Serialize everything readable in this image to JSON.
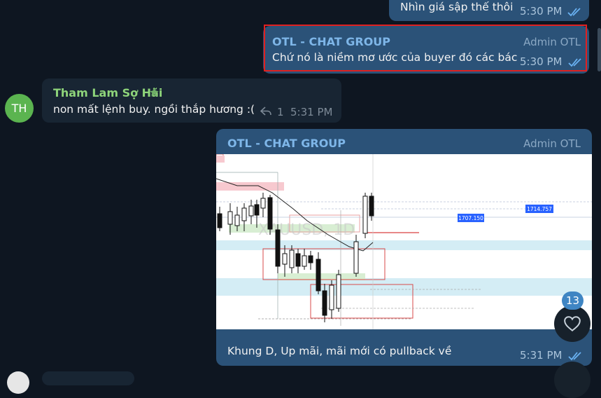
{
  "messages": [
    {
      "text": "Nhìn giá sập thế thôi",
      "time": "5:30 PM"
    },
    {
      "sender": "OTL - CHAT GROUP",
      "role": "Admin OTL",
      "text": "Chứ nó là niềm mơ ước của buyer đó các bác",
      "time": "5:30 PM"
    },
    {
      "initials": "TH",
      "sender": "Tham Lam Sợ Hãi",
      "text": "non mất lệnh buy. ngồi thắp hương :(",
      "reply_count": "1",
      "time": "5:31 PM"
    },
    {
      "sender": "OTL - CHAT GROUP",
      "role": "Admin OTL",
      "caption": "Khung D, Up mãi, mãi mới có pullback về",
      "time": "5:31 PM"
    }
  ],
  "chart_image": {
    "price_label_1": "1707.150",
    "price_label_2": "1714.757",
    "watermark": "XAUUSD, 1D"
  },
  "unread_badge": "13",
  "colors": {
    "bg": "#0e1621",
    "bubble_out": "#2b5278",
    "bubble_in": "#182533",
    "accent": "#6ab2f2",
    "highlight_border": "#e02020"
  }
}
